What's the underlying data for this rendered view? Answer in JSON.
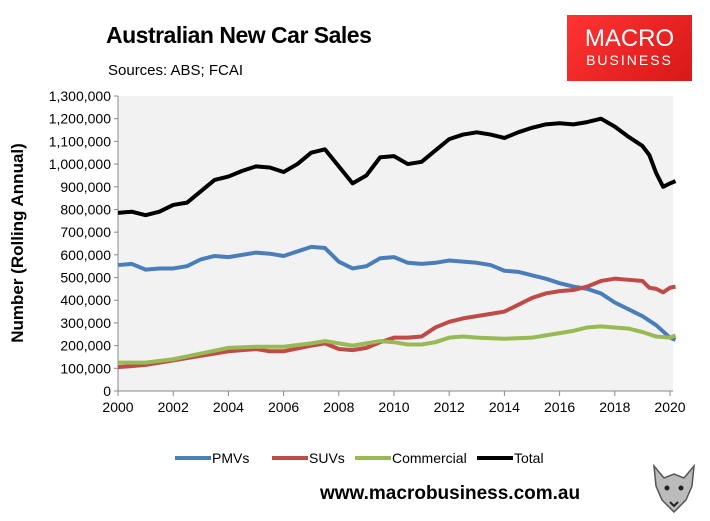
{
  "header": {
    "title": "Australian New Car Sales",
    "subtitle": "Sources: ABS; FCAI"
  },
  "logo": {
    "line1": "MACRO",
    "line2": "BUSINESS",
    "color": "#e82020"
  },
  "footer": {
    "url": "www.macrobusiness.com.au"
  },
  "chart_data": {
    "type": "line",
    "title": "Australian New Car Sales",
    "ylabel": "Number (Rolling Annual)",
    "xlabel": "",
    "xlim": [
      2000,
      2020.2
    ],
    "ylim": [
      0,
      1300000
    ],
    "xticks": [
      "2000",
      "2002",
      "2004",
      "2006",
      "2008",
      "2010",
      "2012",
      "2014",
      "2016",
      "2018",
      "2020"
    ],
    "yticks": [
      "0",
      "100,000",
      "200,000",
      "300,000",
      "400,000",
      "500,000",
      "600,000",
      "700,000",
      "800,000",
      "900,000",
      "1,000,000",
      "1,100,000",
      "1,200,000",
      "1,300,000"
    ],
    "grid": false,
    "legend": "bottom",
    "background": "#f2f2f2",
    "series": [
      {
        "name": "PMVs",
        "color": "#4a7ebb",
        "points": [
          [
            2000,
            555000
          ],
          [
            2000.5,
            560000
          ],
          [
            2001,
            535000
          ],
          [
            2001.5,
            540000
          ],
          [
            2002,
            540000
          ],
          [
            2002.5,
            550000
          ],
          [
            2003,
            580000
          ],
          [
            2003.5,
            595000
          ],
          [
            2004,
            590000
          ],
          [
            2004.5,
            600000
          ],
          [
            2005,
            610000
          ],
          [
            2005.5,
            605000
          ],
          [
            2006,
            595000
          ],
          [
            2006.5,
            615000
          ],
          [
            2007,
            635000
          ],
          [
            2007.5,
            630000
          ],
          [
            2008,
            570000
          ],
          [
            2008.5,
            540000
          ],
          [
            2009,
            550000
          ],
          [
            2009.5,
            585000
          ],
          [
            2010,
            590000
          ],
          [
            2010.5,
            565000
          ],
          [
            2011,
            560000
          ],
          [
            2011.5,
            565000
          ],
          [
            2012,
            575000
          ],
          [
            2012.5,
            570000
          ],
          [
            2013,
            565000
          ],
          [
            2013.5,
            555000
          ],
          [
            2014,
            530000
          ],
          [
            2014.5,
            525000
          ],
          [
            2015,
            510000
          ],
          [
            2015.5,
            495000
          ],
          [
            2016,
            475000
          ],
          [
            2016.5,
            460000
          ],
          [
            2017,
            450000
          ],
          [
            2017.5,
            430000
          ],
          [
            2018,
            390000
          ],
          [
            2018.5,
            360000
          ],
          [
            2019,
            330000
          ],
          [
            2019.5,
            290000
          ],
          [
            2020,
            235000
          ],
          [
            2020.2,
            225000
          ]
        ]
      },
      {
        "name": "SUVs",
        "color": "#be4b48",
        "points": [
          [
            2000,
            105000
          ],
          [
            2001,
            115000
          ],
          [
            2002,
            135000
          ],
          [
            2003,
            155000
          ],
          [
            2004,
            175000
          ],
          [
            2005,
            185000
          ],
          [
            2005.5,
            175000
          ],
          [
            2006,
            175000
          ],
          [
            2007,
            200000
          ],
          [
            2007.5,
            210000
          ],
          [
            2008,
            185000
          ],
          [
            2008.5,
            180000
          ],
          [
            2009,
            190000
          ],
          [
            2009.5,
            215000
          ],
          [
            2010,
            235000
          ],
          [
            2010.5,
            235000
          ],
          [
            2011,
            240000
          ],
          [
            2011.5,
            280000
          ],
          [
            2012,
            305000
          ],
          [
            2012.5,
            320000
          ],
          [
            2013,
            330000
          ],
          [
            2013.5,
            340000
          ],
          [
            2014,
            350000
          ],
          [
            2014.5,
            380000
          ],
          [
            2015,
            410000
          ],
          [
            2015.5,
            430000
          ],
          [
            2016,
            440000
          ],
          [
            2016.5,
            445000
          ],
          [
            2017,
            460000
          ],
          [
            2017.5,
            485000
          ],
          [
            2018,
            495000
          ],
          [
            2018.5,
            490000
          ],
          [
            2019,
            485000
          ],
          [
            2019.25,
            455000
          ],
          [
            2019.5,
            450000
          ],
          [
            2019.75,
            435000
          ],
          [
            2020,
            455000
          ],
          [
            2020.2,
            460000
          ]
        ]
      },
      {
        "name": "Commercial",
        "color": "#98b954",
        "points": [
          [
            2000,
            125000
          ],
          [
            2001,
            125000
          ],
          [
            2002,
            140000
          ],
          [
            2003,
            165000
          ],
          [
            2004,
            190000
          ],
          [
            2005,
            195000
          ],
          [
            2006,
            195000
          ],
          [
            2007,
            210000
          ],
          [
            2007.5,
            220000
          ],
          [
            2008,
            210000
          ],
          [
            2008.5,
            200000
          ],
          [
            2009,
            210000
          ],
          [
            2009.5,
            220000
          ],
          [
            2010,
            215000
          ],
          [
            2010.5,
            205000
          ],
          [
            2011,
            205000
          ],
          [
            2011.5,
            215000
          ],
          [
            2012,
            235000
          ],
          [
            2012.5,
            240000
          ],
          [
            2013,
            235000
          ],
          [
            2014,
            230000
          ],
          [
            2015,
            235000
          ],
          [
            2015.5,
            245000
          ],
          [
            2016,
            255000
          ],
          [
            2016.5,
            265000
          ],
          [
            2017,
            280000
          ],
          [
            2017.5,
            285000
          ],
          [
            2018,
            280000
          ],
          [
            2018.5,
            275000
          ],
          [
            2019,
            260000
          ],
          [
            2019.5,
            240000
          ],
          [
            2020,
            235000
          ],
          [
            2020.2,
            245000
          ]
        ]
      },
      {
        "name": "Total",
        "color": "#000000",
        "points": [
          [
            2000,
            785000
          ],
          [
            2000.5,
            790000
          ],
          [
            2001,
            775000
          ],
          [
            2001.5,
            790000
          ],
          [
            2002,
            820000
          ],
          [
            2002.5,
            830000
          ],
          [
            2003,
            880000
          ],
          [
            2003.5,
            930000
          ],
          [
            2004,
            945000
          ],
          [
            2004.5,
            970000
          ],
          [
            2005,
            990000
          ],
          [
            2005.5,
            985000
          ],
          [
            2006,
            965000
          ],
          [
            2006.5,
            1000000
          ],
          [
            2007,
            1050000
          ],
          [
            2007.5,
            1065000
          ],
          [
            2008,
            990000
          ],
          [
            2008.5,
            915000
          ],
          [
            2009,
            950000
          ],
          [
            2009.5,
            1030000
          ],
          [
            2010,
            1035000
          ],
          [
            2010.5,
            1000000
          ],
          [
            2011,
            1010000
          ],
          [
            2011.5,
            1060000
          ],
          [
            2012,
            1110000
          ],
          [
            2012.5,
            1130000
          ],
          [
            2013,
            1140000
          ],
          [
            2013.5,
            1130000
          ],
          [
            2014,
            1115000
          ],
          [
            2014.5,
            1140000
          ],
          [
            2015,
            1160000
          ],
          [
            2015.5,
            1175000
          ],
          [
            2016,
            1180000
          ],
          [
            2016.5,
            1175000
          ],
          [
            2017,
            1185000
          ],
          [
            2017.5,
            1200000
          ],
          [
            2018,
            1165000
          ],
          [
            2018.5,
            1120000
          ],
          [
            2019,
            1080000
          ],
          [
            2019.25,
            1040000
          ],
          [
            2019.5,
            960000
          ],
          [
            2019.75,
            900000
          ],
          [
            2020,
            915000
          ],
          [
            2020.2,
            925000
          ]
        ]
      }
    ]
  }
}
